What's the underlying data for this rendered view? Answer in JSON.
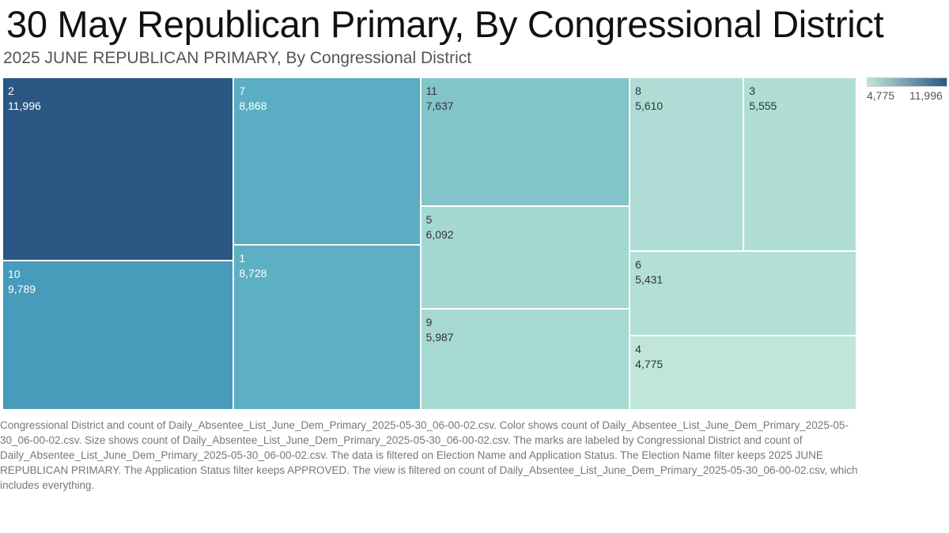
{
  "title": "30 May Republican Primary, By Congressional District",
  "subtitle": "2025 JUNE REPUBLICAN PRIMARY, By Congressional District",
  "legend": {
    "min": "4,775",
    "max": "11,996",
    "color_low": "#c0e6d9",
    "color_high": "#2b5784"
  },
  "caption": "Congressional District and count of Daily_Absentee_List_June_Dem_Primary_2025-05-30_06-00-02.csv.  Color shows count of Daily_Absentee_List_June_Dem_Primary_2025-05-30_06-00-02.csv.  Size shows count of Daily_Absentee_List_June_Dem_Primary_2025-05-30_06-00-02.csv.  The marks are labeled by Congressional District and count of Daily_Absentee_List_June_Dem_Primary_2025-05-30_06-00-02.csv. The data is filtered on Election Name and Application Status. The Election Name filter keeps 2025 JUNE REPUBLICAN PRIMARY. The Application Status filter keeps APPROVED. The view is filtered on count of Daily_Absentee_List_June_Dem_Primary_2025-05-30_06-00-02.csv, which includes everything.",
  "chart_data": {
    "type": "treemap",
    "color_range": [
      4775,
      11996
    ],
    "items": [
      {
        "district": "2",
        "value": 11996,
        "value_label": "11,996"
      },
      {
        "district": "10",
        "value": 9789,
        "value_label": "9,789"
      },
      {
        "district": "7",
        "value": 8868,
        "value_label": "8,868"
      },
      {
        "district": "1",
        "value": 8728,
        "value_label": "8,728"
      },
      {
        "district": "11",
        "value": 7637,
        "value_label": "7,637"
      },
      {
        "district": "5",
        "value": 6092,
        "value_label": "6,092"
      },
      {
        "district": "9",
        "value": 5987,
        "value_label": "5,987"
      },
      {
        "district": "8",
        "value": 5610,
        "value_label": "5,610"
      },
      {
        "district": "3",
        "value": 5555,
        "value_label": "5,555"
      },
      {
        "district": "6",
        "value": 5431,
        "value_label": "5,431"
      },
      {
        "district": "4",
        "value": 4775,
        "value_label": "4,775"
      }
    ]
  }
}
